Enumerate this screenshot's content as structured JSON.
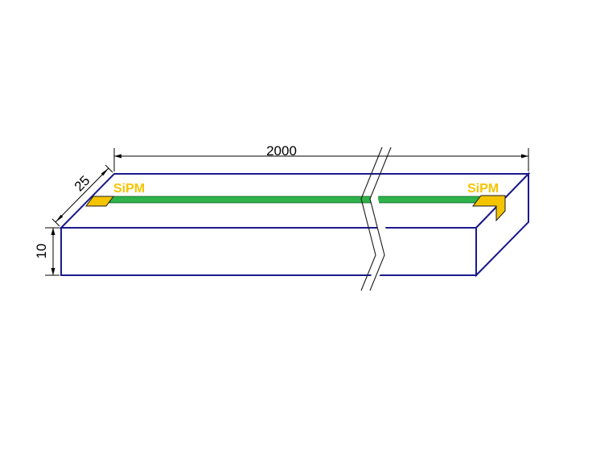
{
  "dimensions": {
    "length": "2000",
    "width": "25",
    "height": "10"
  },
  "labels": {
    "sipm_left": "SiPM",
    "sipm_right": "SiPM"
  },
  "colors": {
    "outline": "#1a1a8c",
    "fiber": "#2db34a",
    "sipm": "#f5c400",
    "dimension_line": "#000000",
    "background": "#ffffff"
  }
}
